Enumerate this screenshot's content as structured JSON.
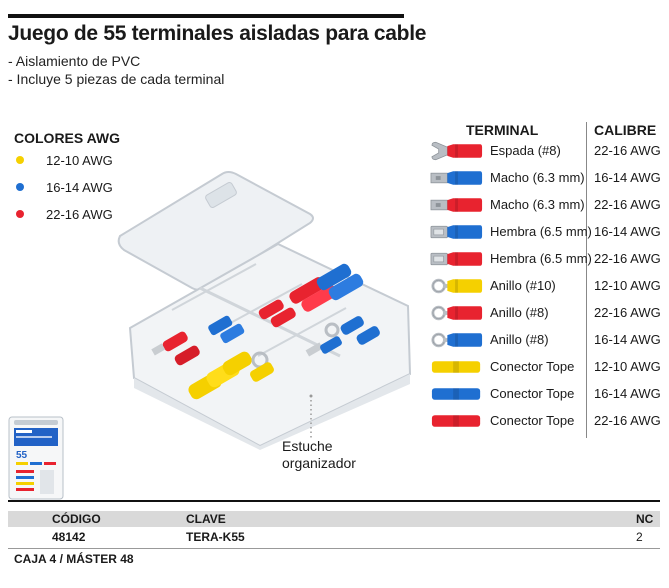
{
  "title": "Juego de 55 terminales aisladas para cable",
  "features": [
    "- Aislamiento de PVC",
    "- Incluye 5 piezas de cada terminal"
  ],
  "awg_legend": {
    "heading": "COLORES AWG",
    "items": [
      {
        "color": "#f5d000",
        "label": "12-10 AWG"
      },
      {
        "color": "#1f6fd1",
        "label": "16-14 AWG"
      },
      {
        "color": "#e8232f",
        "label": "22-16 AWG"
      }
    ]
  },
  "caption": {
    "line1": "Estuche",
    "line2": "organizador"
  },
  "package": {
    "number": "55"
  },
  "terminal_table": {
    "header_terminal": "TERMINAL",
    "header_calibre": "CALIBRE",
    "rows": [
      {
        "icon": "spade-terminal-icon",
        "color": "#e8232f",
        "name": "Espada (#8)",
        "calibre": "22-16 AWG"
      },
      {
        "icon": "male-terminal-icon",
        "color": "#1f6fd1",
        "name": "Macho (6.3 mm)",
        "calibre": "16-14 AWG"
      },
      {
        "icon": "male-terminal-icon",
        "color": "#e8232f",
        "name": "Macho (6.3 mm)",
        "calibre": "22-16 AWG"
      },
      {
        "icon": "female-terminal-icon",
        "color": "#1f6fd1",
        "name": "Hembra (6.5 mm)",
        "calibre": "16-14 AWG"
      },
      {
        "icon": "female-terminal-icon",
        "color": "#e8232f",
        "name": "Hembra (6.5 mm)",
        "calibre": "22-16 AWG"
      },
      {
        "icon": "ring-terminal-icon",
        "color": "#f5d000",
        "name": "Anillo (#10)",
        "calibre": "12-10 AWG"
      },
      {
        "icon": "ring-terminal-icon",
        "color": "#e8232f",
        "name": "Anillo (#8)",
        "calibre": "22-16 AWG"
      },
      {
        "icon": "ring-terminal-icon",
        "color": "#1f6fd1",
        "name": "Anillo (#8)",
        "calibre": "16-14 AWG"
      },
      {
        "icon": "butt-connector-icon",
        "color": "#f5d000",
        "name": "Conector Tope",
        "calibre": "12-10 AWG"
      },
      {
        "icon": "butt-connector-icon",
        "color": "#1f6fd1",
        "name": "Conector Tope",
        "calibre": "16-14 AWG"
      },
      {
        "icon": "butt-connector-icon",
        "color": "#e8232f",
        "name": "Conector Tope",
        "calibre": "22-16 AWG"
      }
    ]
  },
  "info_table": {
    "headers": {
      "codigo": "CÓDIGO",
      "clave": "CLAVE",
      "nc": "NC"
    },
    "row": {
      "codigo": "48142",
      "clave": "TERA-K55",
      "nc": "2"
    }
  },
  "footer": "CAJA 4 / MÁSTER 48"
}
